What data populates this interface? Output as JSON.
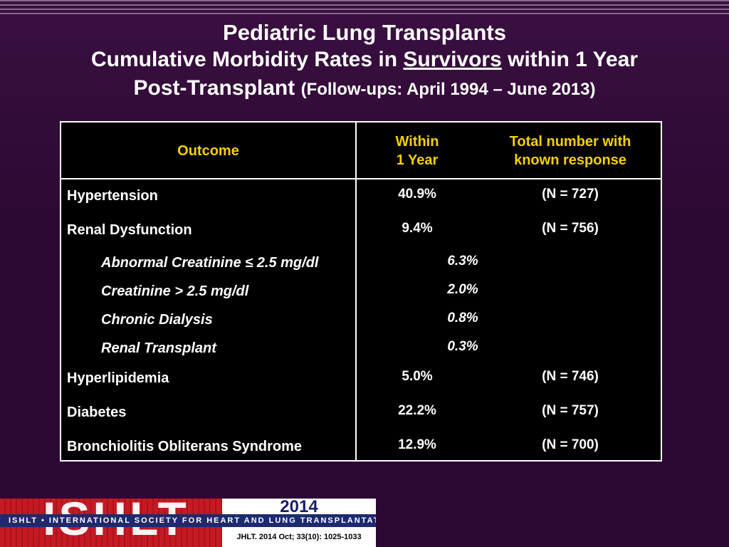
{
  "title": {
    "line1": "Pediatric Lung Transplants",
    "line2_pre": "Cumulative Morbidity Rates in ",
    "line2_underlined": "Survivors",
    "line2_post": " within 1 Year",
    "line3_main": "Post-Transplant",
    "line3_small": "(Follow-ups: April 1994 – June 2013)"
  },
  "table": {
    "headers": {
      "outcome": "Outcome",
      "within_line1": "Within",
      "within_line2": "1 Year",
      "total_line1": "Total number with",
      "total_line2": "known response"
    },
    "rows": [
      {
        "label": "Hypertension",
        "value": "40.9%",
        "n": "(N = 727)"
      },
      {
        "label": "Renal Dysfunction",
        "value": "9.4%",
        "n": "(N = 756)"
      },
      {
        "label": "Abnormal Creatinine ≤ 2.5 mg/dl",
        "value": "6.3%"
      },
      {
        "label": "Creatinine > 2.5 mg/dl",
        "value": "2.0%"
      },
      {
        "label": "Chronic Dialysis",
        "value": "0.8%"
      },
      {
        "label": "Renal Transplant",
        "value": "0.3%"
      },
      {
        "label": "Hyperlipidemia",
        "value": "5.0%",
        "n": "(N = 746)"
      },
      {
        "label": "Diabetes",
        "value": "22.2%",
        "n": "(N = 757)"
      },
      {
        "label": "Bronchiolitis Obliterans Syndrome",
        "value": "12.9%",
        "n": "(N = 700)"
      }
    ]
  },
  "footer": {
    "logo_text": "ISHLT",
    "tagline": "ISHLT • INTERNATIONAL SOCIETY FOR HEART AND LUNG TRANSPLANTATION",
    "year": "2014",
    "citation": "JHLT. 2014 Oct; 33(10): 1025-1033"
  }
}
